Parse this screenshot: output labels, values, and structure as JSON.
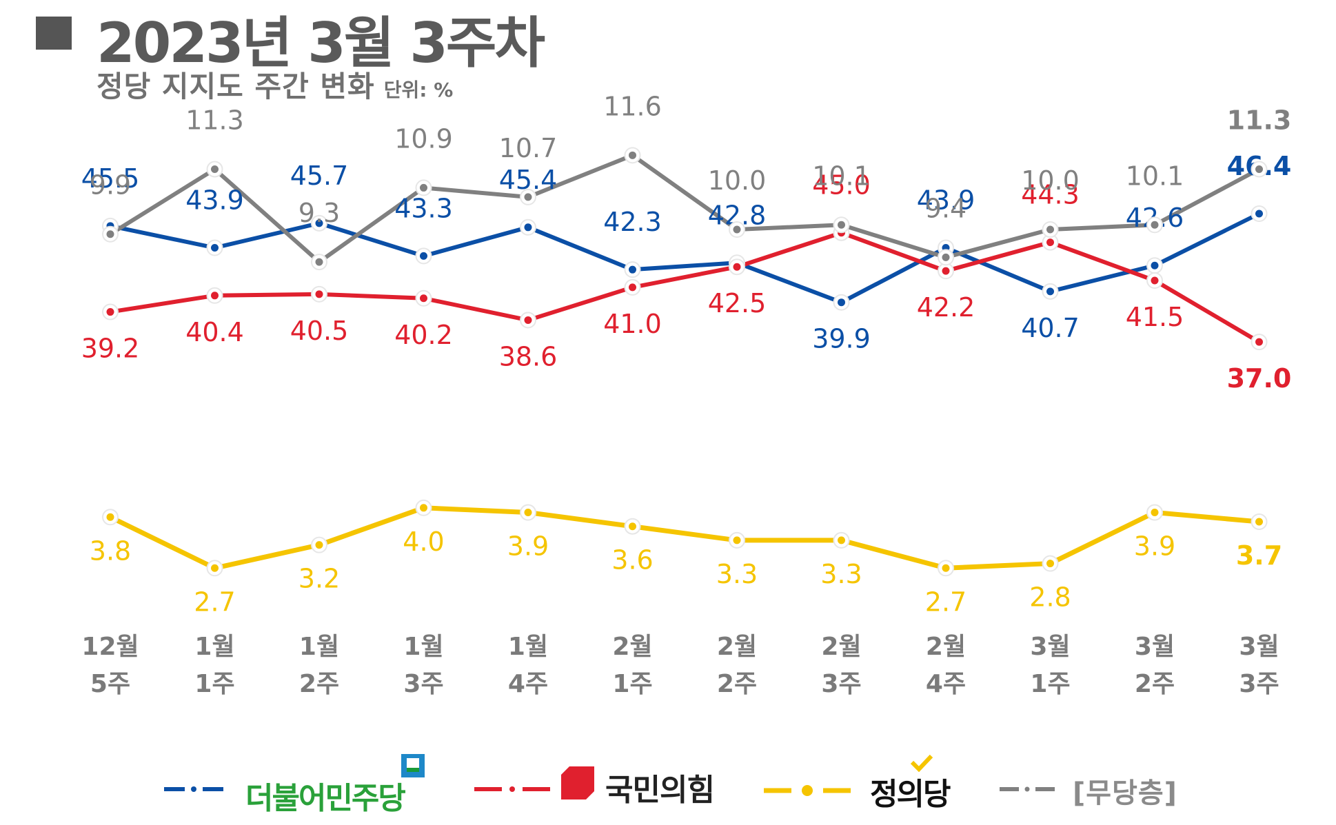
{
  "header": {
    "title": "2023년 3월 3주차",
    "subtitle": "정당 지지도 주간 변화",
    "unit": "단위: %"
  },
  "colors": {
    "minju": "#0b4fa6",
    "ppp": "#e0202e",
    "justice": "#f5c400",
    "none": "#808080",
    "minju_label": "#2aa13a"
  },
  "legend": [
    {
      "key": "minju",
      "label": "더불어민주당",
      "icon": "minju-logo-icon"
    },
    {
      "key": "ppp",
      "label": "국민의힘",
      "icon": "ppp-logo-icon"
    },
    {
      "key": "justice",
      "label": "정의당",
      "icon": "justice-check-icon"
    },
    {
      "key": "none",
      "label": "[무당층]",
      "icon": ""
    }
  ],
  "chart_data": {
    "type": "line",
    "title": "2023년 3월 3주차",
    "subtitle": "정당 지지도 주간 변화",
    "unit": "단위: %",
    "categories": [
      [
        "12월",
        "5주"
      ],
      [
        "1월",
        "1주"
      ],
      [
        "1월",
        "2주"
      ],
      [
        "1월",
        "3주"
      ],
      [
        "1월",
        "4주"
      ],
      [
        "2월",
        "1주"
      ],
      [
        "2월",
        "2주"
      ],
      [
        "2월",
        "3주"
      ],
      [
        "2월",
        "4주"
      ],
      [
        "3월",
        "1주"
      ],
      [
        "3월",
        "2주"
      ],
      [
        "3월",
        "3주"
      ]
    ],
    "series": [
      {
        "key": "minju",
        "name": "더불어민주당",
        "values": [
          45.5,
          43.9,
          45.7,
          43.3,
          45.4,
          42.3,
          42.8,
          39.9,
          43.9,
          40.7,
          42.6,
          46.4
        ],
        "labels": [
          "45.5",
          "43.9",
          "45.7",
          "43.3",
          "45.4",
          "42.3",
          "42.8",
          "39.9",
          "43.9",
          "40.7",
          "42.6",
          "46.4"
        ]
      },
      {
        "key": "ppp",
        "name": "국민의힘",
        "values": [
          39.2,
          40.4,
          40.5,
          40.2,
          38.6,
          41.0,
          42.5,
          45.0,
          42.2,
          44.3,
          41.5,
          37.0
        ],
        "labels": [
          "39.2",
          "40.4",
          "40.5",
          "40.2",
          "38.6",
          "41.0",
          "42.5",
          "45.0",
          "42.2",
          "44.3",
          "41.5",
          "37.0"
        ]
      },
      {
        "key": "none",
        "name": "[무당층]",
        "values": [
          9.9,
          11.3,
          9.3,
          10.9,
          10.7,
          11.6,
          10.0,
          10.1,
          9.4,
          10.0,
          10.1,
          11.3
        ],
        "labels": [
          "9.9",
          "11.3",
          "9.3",
          "10.9",
          "10.7",
          "11.6",
          "10.0",
          "10.1",
          "9.4",
          "10.0",
          "10.1",
          "11.3"
        ]
      },
      {
        "key": "justice",
        "name": "정의당",
        "values": [
          3.8,
          2.7,
          3.2,
          4.0,
          3.9,
          3.6,
          3.3,
          3.3,
          2.7,
          2.8,
          3.9,
          3.7
        ],
        "labels": [
          "3.8",
          "2.7",
          "3.2",
          "4.0",
          "3.9",
          "3.6",
          "3.3",
          "3.3",
          "2.7",
          "2.8",
          "3.9",
          "3.7"
        ]
      }
    ],
    "grid": false,
    "legend_position": "bottom"
  }
}
